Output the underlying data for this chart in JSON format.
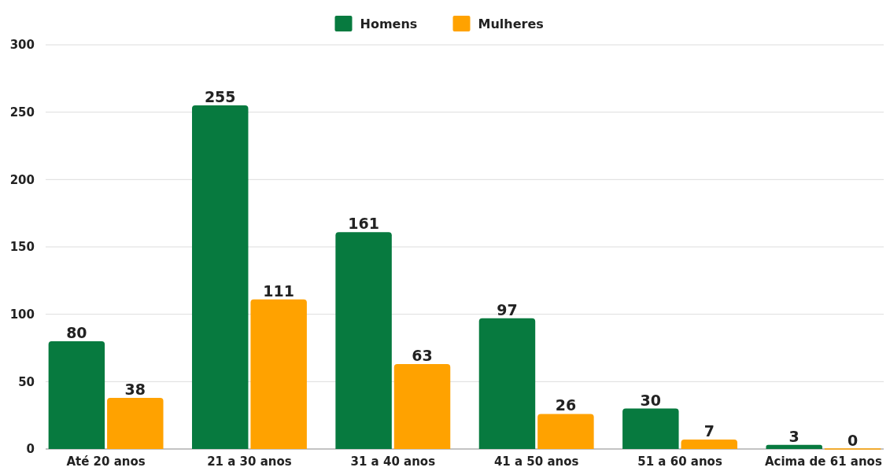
{
  "chart_data": {
    "type": "bar",
    "categories": [
      "Até 20 anos",
      "21 a 30 anos",
      "31 a 40 anos",
      "41 a 50 anos",
      "51 a 60 anos",
      "Acima de 61 anos"
    ],
    "series": [
      {
        "name": "Homens",
        "color": "#077a3f",
        "values": [
          80,
          255,
          161,
          97,
          30,
          3
        ]
      },
      {
        "name": "Mulheres",
        "color": "#ffa200",
        "values": [
          38,
          111,
          63,
          26,
          7,
          0
        ]
      }
    ],
    "ylim": [
      0,
      300
    ],
    "yticks": [
      0,
      50,
      100,
      150,
      200,
      250,
      300
    ],
    "grid": "y",
    "legend": "top",
    "data_labels": true
  }
}
